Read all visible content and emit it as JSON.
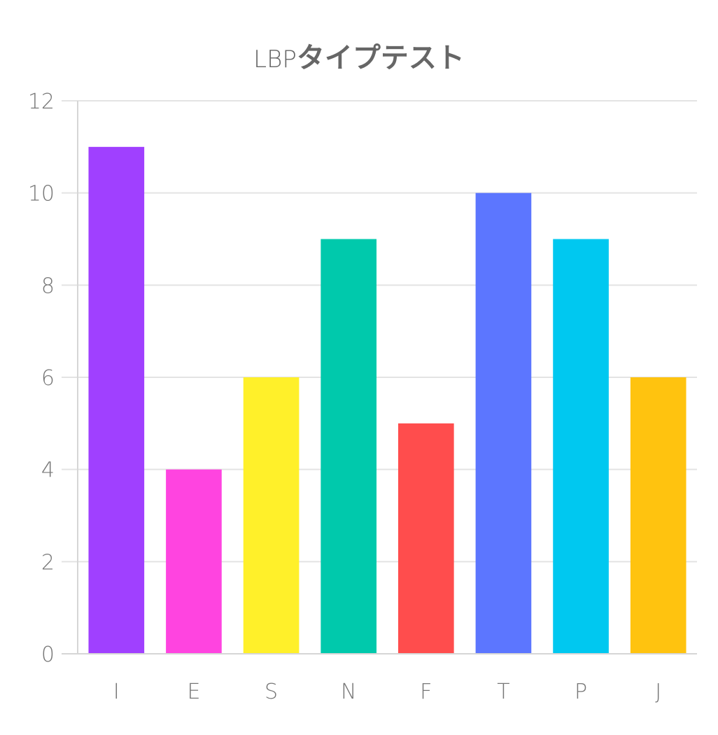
{
  "chart_data": {
    "type": "bar",
    "title_prefix": "LBP",
    "title": "タイプテスト",
    "categories": [
      "I",
      "E",
      "S",
      "N",
      "F",
      "T",
      "P",
      "J"
    ],
    "values": [
      11,
      4,
      6,
      9,
      5,
      10,
      9,
      6
    ],
    "colors": [
      "#a040ff",
      "#ff44e0",
      "#fff02a",
      "#00c9ac",
      "#ff4d4d",
      "#5c76ff",
      "#00c8f0",
      "#ffc30f"
    ],
    "ylim": [
      0,
      12
    ],
    "yticks": [
      0,
      2,
      4,
      6,
      8,
      10,
      12
    ],
    "grid": true,
    "legend": "none"
  }
}
